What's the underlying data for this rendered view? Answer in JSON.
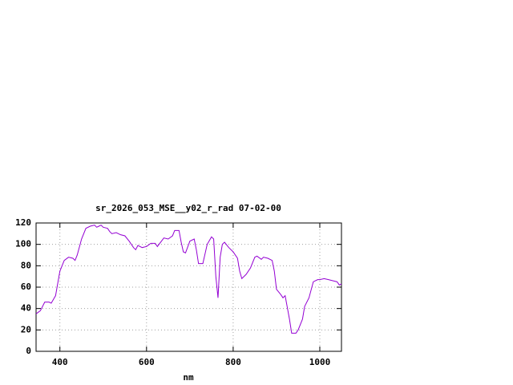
{
  "chart_data": {
    "type": "line",
    "title": "sr_2026_053_MSE__y02_r_rad 07-02-00",
    "x_label": "nm",
    "x": [
      345,
      355,
      365,
      375,
      380,
      390,
      400,
      410,
      420,
      430,
      435,
      440,
      450,
      460,
      470,
      480,
      485,
      490,
      495,
      500,
      510,
      515,
      520,
      530,
      540,
      550,
      560,
      570,
      575,
      580,
      590,
      600,
      610,
      620,
      625,
      640,
      650,
      660,
      665,
      675,
      680,
      685,
      690,
      700,
      710,
      715,
      720,
      730,
      740,
      750,
      755,
      760,
      765,
      770,
      775,
      780,
      790,
      800,
      810,
      815,
      820,
      830,
      840,
      850,
      855,
      865,
      870,
      880,
      890,
      895,
      900,
      910,
      915,
      920,
      930,
      935,
      945,
      950,
      960,
      965,
      975,
      985,
      995,
      1000,
      1010,
      1020,
      1030,
      1040,
      1045,
      1050
    ],
    "values": [
      35,
      38,
      46,
      46,
      45,
      52,
      75,
      85,
      88,
      87,
      85,
      90,
      105,
      115,
      117,
      118,
      116,
      117,
      118,
      116,
      115,
      112,
      110,
      111,
      109,
      108,
      103,
      97,
      95,
      99,
      97,
      98,
      101,
      101,
      98,
      106,
      105,
      108,
      113,
      113,
      102,
      93,
      92,
      103,
      105,
      95,
      82,
      82,
      100,
      107,
      105,
      70,
      50,
      88,
      100,
      102,
      97,
      93,
      87,
      75,
      68,
      72,
      78,
      88,
      89,
      86,
      88,
      87,
      85,
      75,
      58,
      53,
      50,
      52,
      30,
      17,
      17,
      20,
      30,
      42,
      50,
      65,
      67,
      67,
      68,
      67,
      66,
      65,
      62,
      63
    ],
    "color": "#9400d3",
    "xlim": [
      345,
      1050
    ],
    "xticks": [
      400,
      600,
      800,
      1000
    ],
    "ylim": [
      0,
      120
    ],
    "yticks": [
      0,
      20,
      40,
      60,
      80,
      100,
      120
    ],
    "grid": true
  }
}
